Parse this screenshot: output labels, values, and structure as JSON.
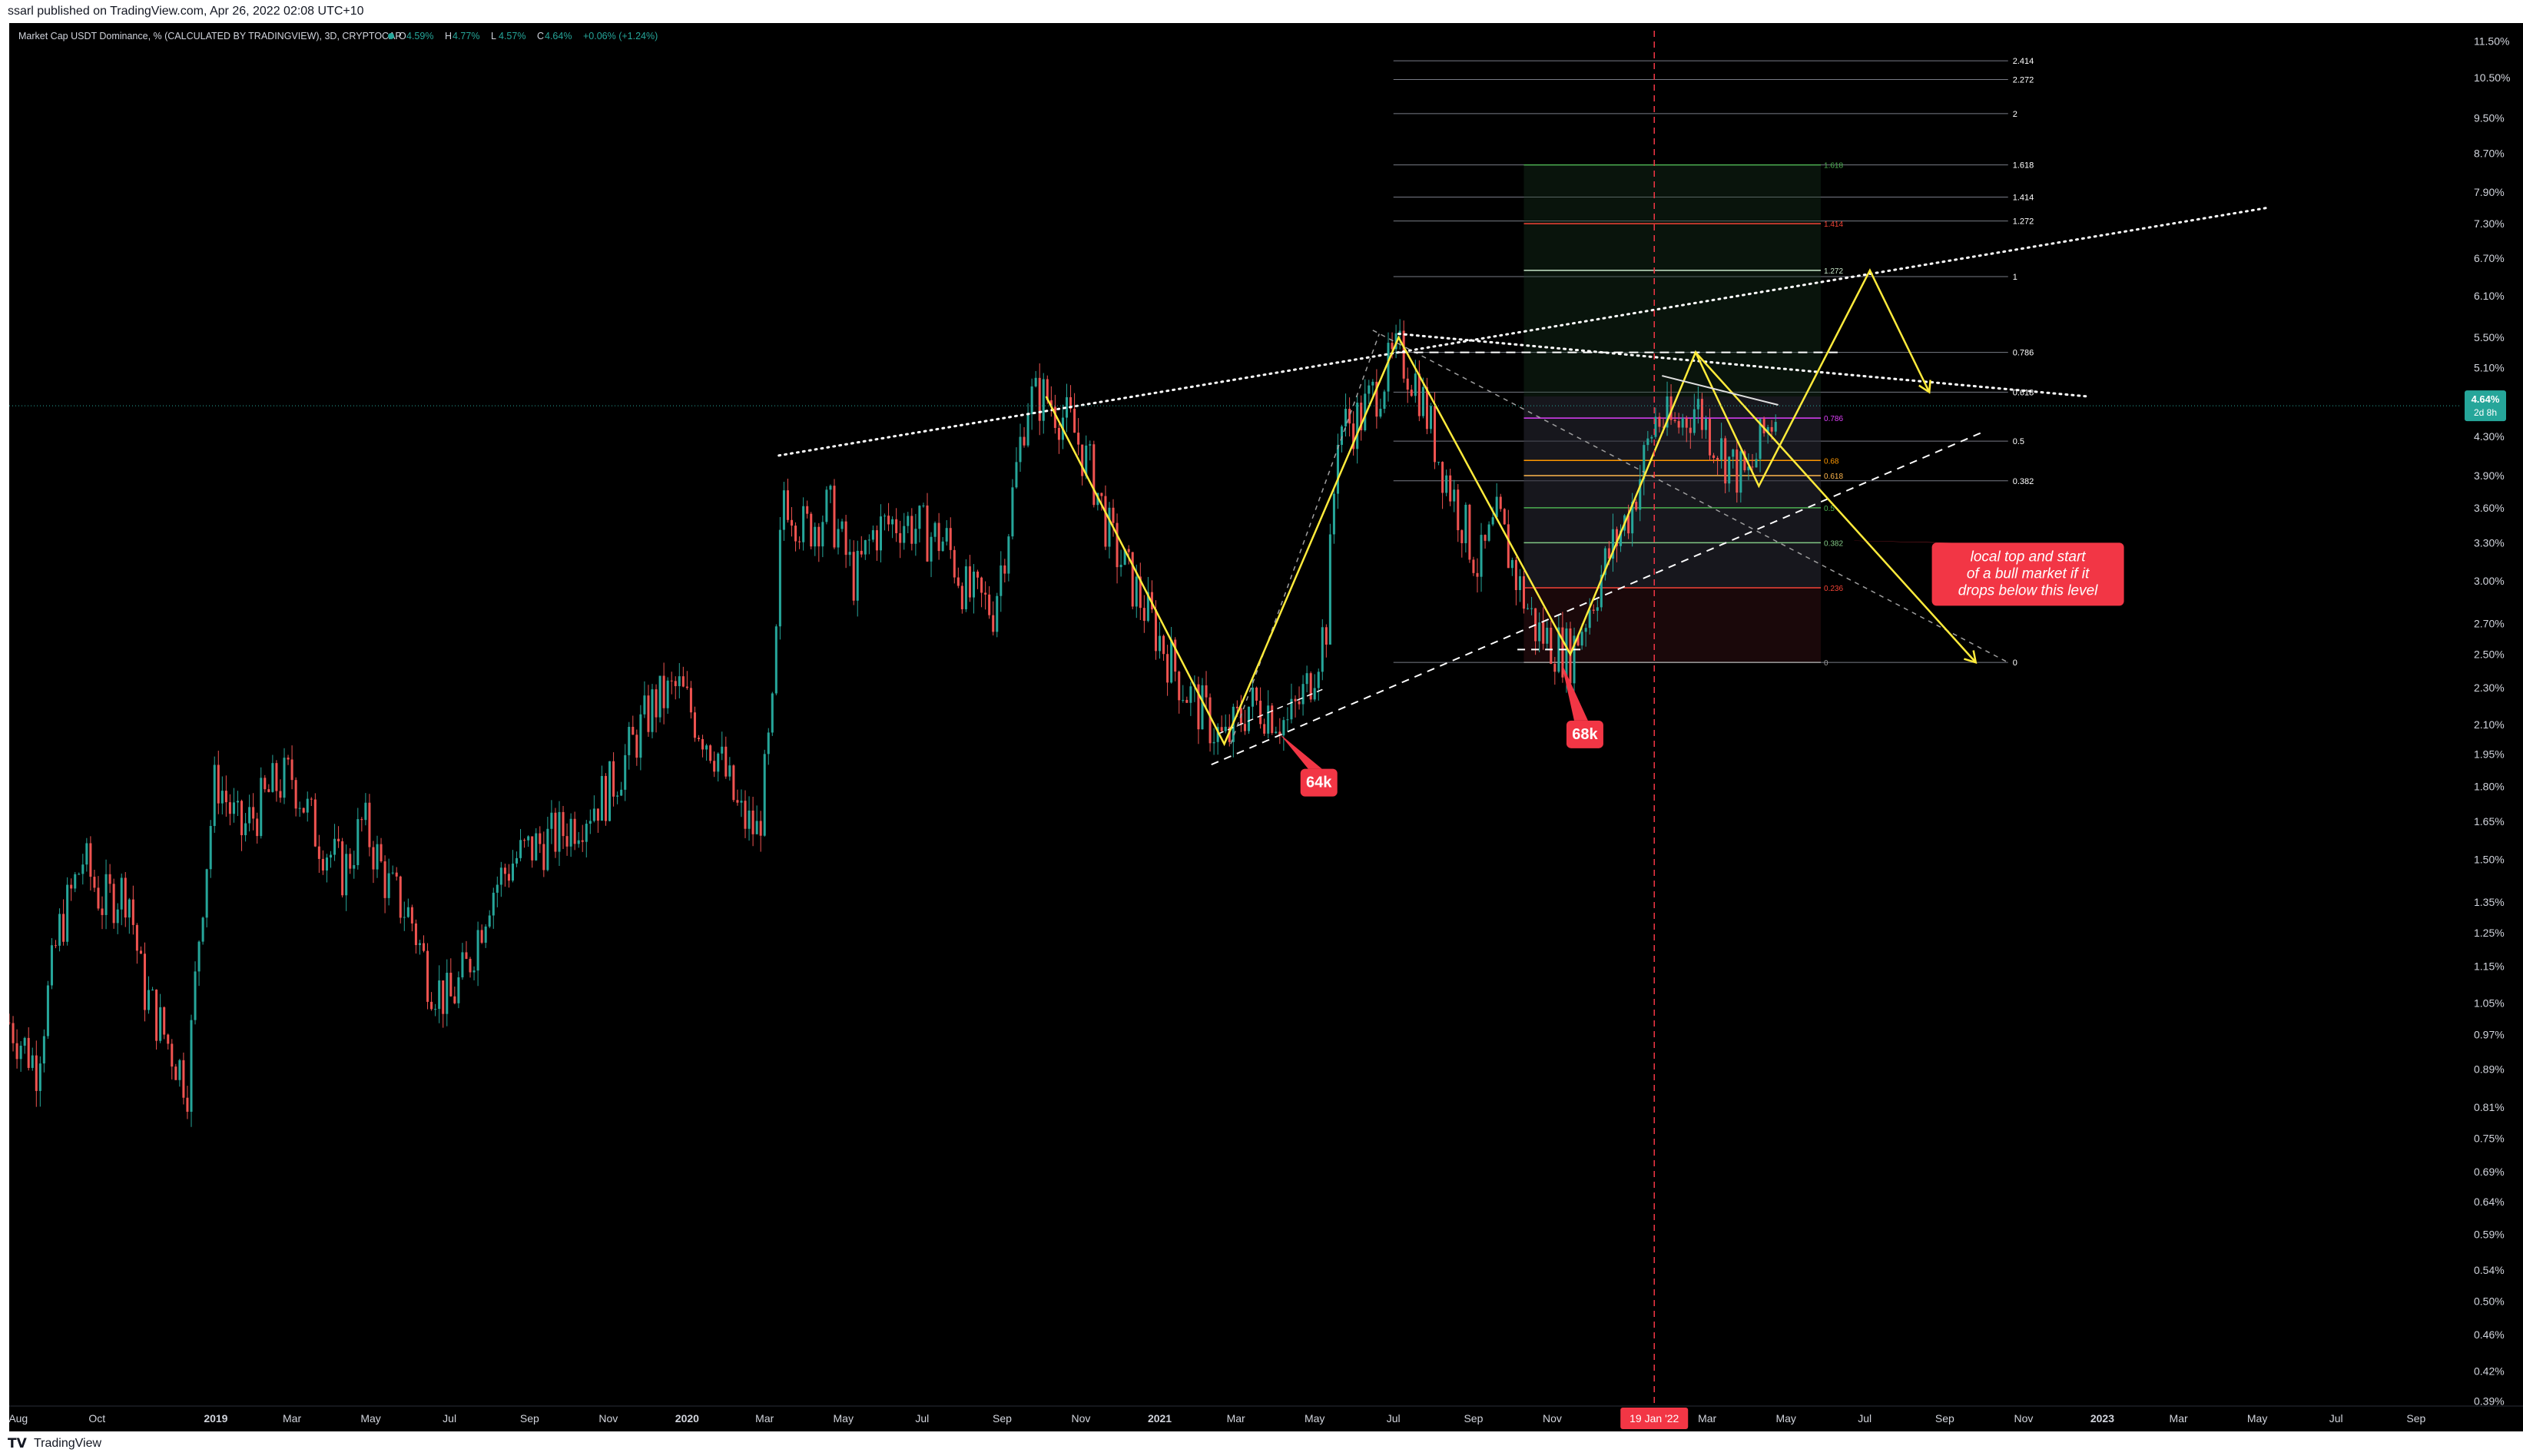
{
  "header": {
    "published": "ssarl published on TradingView.com, Apr 26, 2022 02:08 UTC+10"
  },
  "footer": {
    "brand": "TradingView",
    "logo_icon": "tradingview-logo-icon"
  },
  "legend": {
    "symbol": "Market Cap USDT Dominance, % (CALCULATED BY TRADINGVIEW), 3D, CRYPTOCAP",
    "open_label": "O",
    "open": "4.59%",
    "high_label": "H",
    "high": "4.77%",
    "low_label": "L",
    "low": "4.57%",
    "close_label": "C",
    "close": "4.64%",
    "change": "+0.06% (+1.24%)",
    "status_dot_color": "#26a69a"
  },
  "price_badge": {
    "value": "4.64%",
    "countdown": "2d 8h",
    "color": "#26a69a"
  },
  "date_badge": {
    "label": "19 Jan '22",
    "color": "#f23645"
  },
  "colors": {
    "background": "#000000",
    "up": "#26a69a",
    "down": "#ef5350",
    "yellow": "#ffeb3b",
    "annotation": "#f23645"
  },
  "annotations": [
    {
      "text": "64k",
      "date": "2021-04-20",
      "price": 1.88
    },
    {
      "text": "68k",
      "date": "2021-11-12",
      "price": 2.12
    },
    {
      "lines": [
        "local top  and start",
        "of a bull market if it",
        " drops below this level"
      ],
      "date": "2022-08-22",
      "price": 3.3
    }
  ],
  "chart_data": {
    "type": "candlestick",
    "title": "Market Cap USDT Dominance, % (CALCULATED BY TRADINGVIEW), 3D, CRYPTOCAP",
    "scale": "log",
    "grid": false,
    "ylim": [
      0.385,
      11.8
    ],
    "xlim": [
      "2018-07-25",
      "2023-10-05"
    ],
    "x_ticks": [
      {
        "label": "Aug",
        "date": "2018-08-01",
        "bold": false
      },
      {
        "label": "Oct",
        "date": "2018-10-01",
        "bold": false
      },
      {
        "label": "2019",
        "date": "2019-01-01",
        "bold": true
      },
      {
        "label": "Mar",
        "date": "2019-03-01",
        "bold": false
      },
      {
        "label": "May",
        "date": "2019-05-01",
        "bold": false
      },
      {
        "label": "Jul",
        "date": "2019-07-01",
        "bold": false
      },
      {
        "label": "Sep",
        "date": "2019-09-01",
        "bold": false
      },
      {
        "label": "Nov",
        "date": "2019-11-01",
        "bold": false
      },
      {
        "label": "2020",
        "date": "2020-01-01",
        "bold": true
      },
      {
        "label": "Mar",
        "date": "2020-03-01",
        "bold": false
      },
      {
        "label": "May",
        "date": "2020-05-01",
        "bold": false
      },
      {
        "label": "Jul",
        "date": "2020-07-01",
        "bold": false
      },
      {
        "label": "Sep",
        "date": "2020-09-01",
        "bold": false
      },
      {
        "label": "Nov",
        "date": "2020-11-01",
        "bold": false
      },
      {
        "label": "2021",
        "date": "2021-01-01",
        "bold": true
      },
      {
        "label": "Mar",
        "date": "2021-03-01",
        "bold": false
      },
      {
        "label": "May",
        "date": "2021-05-01",
        "bold": false
      },
      {
        "label": "Jul",
        "date": "2021-07-01",
        "bold": false
      },
      {
        "label": "Sep",
        "date": "2021-09-01",
        "bold": false
      },
      {
        "label": "Nov",
        "date": "2021-11-01",
        "bold": false
      },
      {
        "label": "Mar",
        "date": "2022-03-01",
        "bold": false
      },
      {
        "label": "May",
        "date": "2022-05-01",
        "bold": false
      },
      {
        "label": "Jul",
        "date": "2022-07-01",
        "bold": false
      },
      {
        "label": "Sep",
        "date": "2022-09-01",
        "bold": false
      },
      {
        "label": "Nov",
        "date": "2022-11-01",
        "bold": false
      },
      {
        "label": "2023",
        "date": "2023-01-01",
        "bold": true
      },
      {
        "label": "Mar",
        "date": "2023-03-01",
        "bold": false
      },
      {
        "label": "May",
        "date": "2023-05-01",
        "bold": false
      },
      {
        "label": "Jul",
        "date": "2023-07-01",
        "bold": false
      },
      {
        "label": "Sep",
        "date": "2023-09-01",
        "bold": false
      }
    ],
    "y_ticks": [
      11.5,
      10.5,
      9.5,
      8.7,
      7.9,
      7.3,
      6.7,
      6.1,
      5.5,
      5.1,
      4.3,
      3.9,
      3.6,
      3.3,
      3.0,
      2.7,
      2.5,
      2.3,
      2.1,
      1.95,
      1.8,
      1.65,
      1.5,
      1.35,
      1.25,
      1.15,
      1.05,
      0.97,
      0.89,
      0.81,
      0.75,
      0.69,
      0.64,
      0.59,
      0.54,
      0.5,
      0.46,
      0.42,
      0.39
    ],
    "y_tick_labels": [
      "11.50%",
      "10.50%",
      "9.50%",
      "8.70%",
      "7.90%",
      "7.30%",
      "6.70%",
      "6.10%",
      "5.50%",
      "5.10%",
      "4.30%",
      "3.90%",
      "3.60%",
      "3.30%",
      "3.00%",
      "2.70%",
      "2.50%",
      "2.30%",
      "2.10%",
      "1.95%",
      "1.80%",
      "1.65%",
      "1.50%",
      "1.35%",
      "1.25%",
      "1.15%",
      "1.05%",
      "0.97%",
      "0.89%",
      "0.81%",
      "0.75%",
      "0.69%",
      "0.64%",
      "0.59%",
      "0.54%",
      "0.50%",
      "0.46%",
      "0.42%",
      "0.39%"
    ],
    "price_path": [
      [
        "2018-07-25",
        1.0
      ],
      [
        "2018-08-15",
        0.9
      ],
      [
        "2018-09-01",
        1.25
      ],
      [
        "2018-09-20",
        1.5
      ],
      [
        "2018-10-05",
        1.35
      ],
      [
        "2018-10-25",
        1.4
      ],
      [
        "2018-11-05",
        1.1
      ],
      [
        "2018-11-25",
        0.95
      ],
      [
        "2018-12-10",
        0.86
      ],
      [
        "2018-12-20",
        1.3
      ],
      [
        "2019-01-01",
        1.85
      ],
      [
        "2019-01-20",
        1.6
      ],
      [
        "2019-02-15",
        1.8
      ],
      [
        "2019-03-01",
        1.85
      ],
      [
        "2019-03-20",
        1.6
      ],
      [
        "2019-04-10",
        1.45
      ],
      [
        "2019-04-25",
        1.65
      ],
      [
        "2019-05-15",
        1.4
      ],
      [
        "2019-06-01",
        1.3
      ],
      [
        "2019-06-15",
        1.12
      ],
      [
        "2019-07-01",
        1.05
      ],
      [
        "2019-07-15",
        1.15
      ],
      [
        "2019-08-01",
        1.38
      ],
      [
        "2019-08-20",
        1.5
      ],
      [
        "2019-09-05",
        1.55
      ],
      [
        "2019-09-25",
        1.6
      ],
      [
        "2019-10-15",
        1.7
      ],
      [
        "2019-11-01",
        1.78
      ],
      [
        "2019-11-20",
        2.0
      ],
      [
        "2019-12-05",
        2.2
      ],
      [
        "2019-12-25",
        2.3
      ],
      [
        "2020-01-10",
        2.1
      ],
      [
        "2020-01-25",
        1.95
      ],
      [
        "2020-02-10",
        1.68
      ],
      [
        "2020-02-25",
        1.6
      ],
      [
        "2020-03-08",
        2.2
      ],
      [
        "2020-03-15",
        3.8
      ],
      [
        "2020-04-01",
        3.4
      ],
      [
        "2020-04-20",
        3.6
      ],
      [
        "2020-05-10",
        3.0
      ],
      [
        "2020-05-25",
        3.4
      ],
      [
        "2020-06-15",
        3.5
      ],
      [
        "2020-07-01",
        3.4
      ],
      [
        "2020-07-20",
        3.3
      ],
      [
        "2020-08-05",
        2.9
      ],
      [
        "2020-08-25",
        2.8
      ],
      [
        "2020-09-05",
        3.4
      ],
      [
        "2020-09-20",
        4.7
      ],
      [
        "2020-10-05",
        4.75
      ],
      [
        "2020-10-25",
        4.4
      ],
      [
        "2020-11-10",
        3.9
      ],
      [
        "2020-11-25",
        3.3
      ],
      [
        "2020-12-10",
        3.0
      ],
      [
        "2021-01-01",
        2.6
      ],
      [
        "2021-01-20",
        2.3
      ],
      [
        "2021-02-05",
        2.15
      ],
      [
        "2021-02-20",
        2.0
      ],
      [
        "2021-03-10",
        2.2
      ],
      [
        "2021-03-25",
        2.2
      ],
      [
        "2021-04-10",
        2.1
      ],
      [
        "2021-04-25",
        2.3
      ],
      [
        "2021-05-10",
        2.7
      ],
      [
        "2021-05-19",
        4.4
      ],
      [
        "2021-06-05",
        4.5
      ],
      [
        "2021-06-20",
        4.9
      ],
      [
        "2021-07-05",
        5.3
      ],
      [
        "2021-07-20",
        4.9
      ],
      [
        "2021-08-05",
        4.1
      ],
      [
        "2021-08-20",
        3.6
      ],
      [
        "2021-09-05",
        3.1
      ],
      [
        "2021-09-20",
        3.5
      ],
      [
        "2021-10-05",
        3.0
      ],
      [
        "2021-10-20",
        2.65
      ],
      [
        "2021-11-05",
        2.55
      ],
      [
        "2021-11-15",
        2.5
      ],
      [
        "2021-12-01",
        2.85
      ],
      [
        "2021-12-15",
        3.2
      ],
      [
        "2022-01-01",
        3.6
      ],
      [
        "2022-01-20",
        4.5
      ],
      [
        "2022-02-05",
        4.4
      ],
      [
        "2022-02-20",
        4.65
      ],
      [
        "2022-03-05",
        4.3
      ],
      [
        "2022-03-20",
        4.0
      ],
      [
        "2022-04-01",
        3.85
      ],
      [
        "2022-04-15",
        4.35
      ],
      [
        "2022-04-25",
        4.64
      ]
    ],
    "fib_levels": [
      "2.414",
      "2.272",
      "2",
      "1.618",
      "1.414",
      "1.272",
      "1",
      "0.786",
      "0.618",
      "0.5",
      "0.382",
      "0"
    ]
  }
}
